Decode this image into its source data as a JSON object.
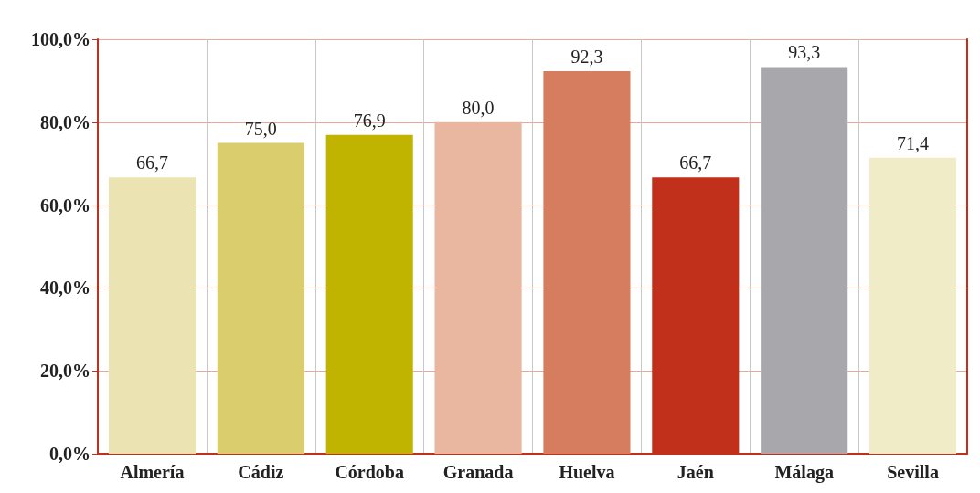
{
  "chart_data": {
    "type": "bar",
    "categories": [
      "Almería",
      "Cádiz",
      "Córdoba",
      "Granada",
      "Huelva",
      "Jaén",
      "Málaga",
      "Sevilla"
    ],
    "values": [
      66.7,
      75.0,
      76.9,
      80.0,
      92.3,
      66.7,
      93.3,
      71.4
    ],
    "colors": [
      "#ebe4b2",
      "#d9cd6e",
      "#c0b400",
      "#e9b7a0",
      "#d77d5f",
      "#c0301a",
      "#a8a8ac",
      "#f0ecc8"
    ],
    "value_labels": [
      "66,7",
      "75,0",
      "76,9",
      "80,0",
      "92,3",
      "66,7",
      "93,3",
      "71,4"
    ],
    "ylim": [
      0,
      100
    ],
    "yticks": [
      {
        "value": 0,
        "label": "0,0%"
      },
      {
        "value": 20,
        "label": "20,0%"
      },
      {
        "value": 40,
        "label": "40,0%"
      },
      {
        "value": 60,
        "label": "60,0%"
      },
      {
        "value": 80,
        "label": "80,0%"
      },
      {
        "value": 100,
        "label": "100,0%"
      }
    ],
    "grid": true
  }
}
